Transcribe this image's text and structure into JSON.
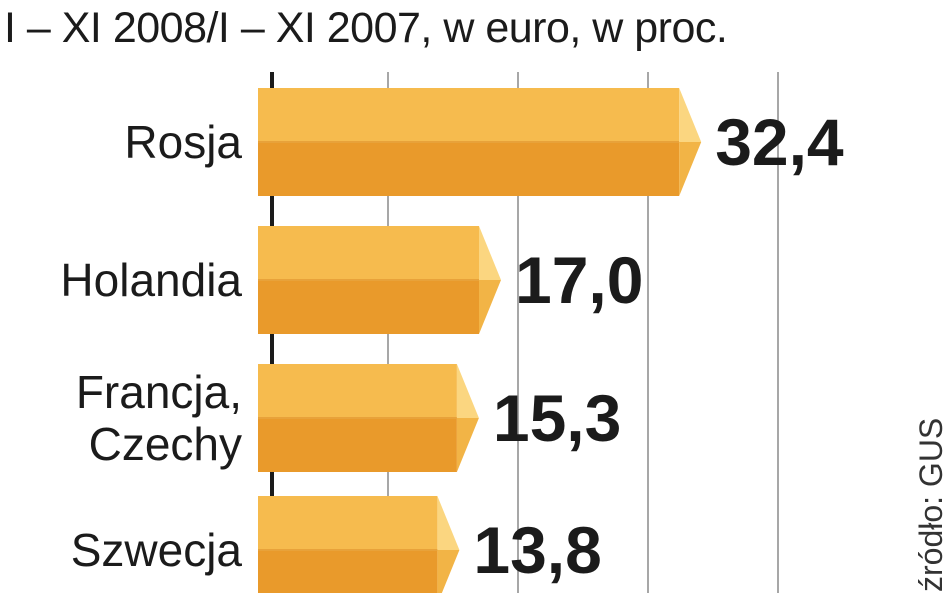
{
  "chart_data": {
    "type": "bar",
    "orientation": "horizontal",
    "title": "I – XI 2008/I – XI 2007, w euro, w proc.",
    "source": "źródło: GUS",
    "categories": [
      [
        "Rosja"
      ],
      [
        "Holandia"
      ],
      [
        "Francja,",
        "Czechy"
      ],
      [
        "Szwecja"
      ]
    ],
    "values": [
      32.4,
      17.0,
      15.3,
      13.8
    ],
    "value_labels": [
      "32,4",
      "17,0",
      "15,3",
      "13,8"
    ],
    "xlim": [
      0,
      40
    ],
    "grid": true,
    "colors": {
      "bar_top": "#f6bb4e",
      "bar_bottom": "#e99a2b",
      "bar_cap": "#fbd680",
      "bar_cap_lower": "#f2b446",
      "divider": "#e8a23a",
      "grid": "#8a8a8a",
      "axis": "#1b1b1b"
    }
  }
}
